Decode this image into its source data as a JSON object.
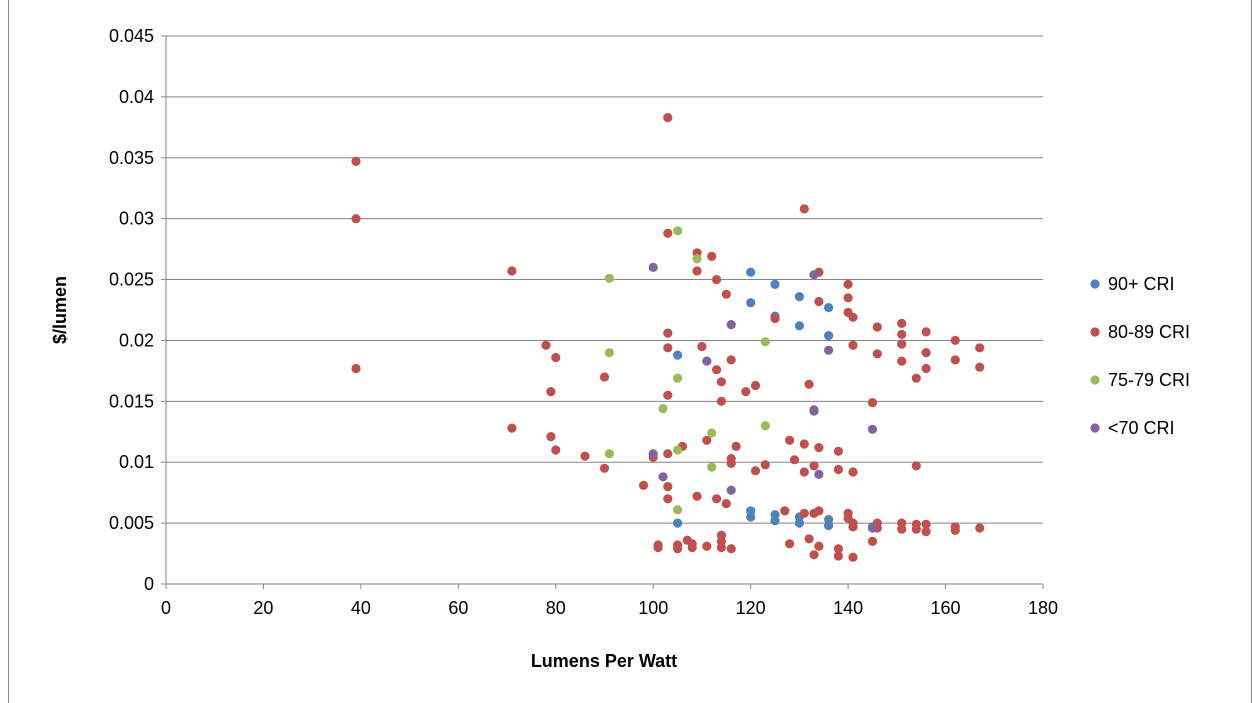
{
  "chart_data": {
    "type": "scatter",
    "title": "",
    "xlabel": "Lumens Per Watt",
    "ylabel": "$/lumen",
    "xlim": [
      0,
      180
    ],
    "ylim": [
      0,
      0.045
    ],
    "x_ticks": [
      "0",
      "20",
      "40",
      "60",
      "80",
      "100",
      "120",
      "140",
      "160",
      "180"
    ],
    "y_ticks": [
      "0",
      "0.005",
      "0.01",
      "0.015",
      "0.02",
      "0.025",
      "0.03",
      "0.035",
      "0.04",
      "0.045"
    ],
    "grid": "horizontal",
    "legend_position": "right",
    "series": [
      {
        "name": "90+ CRI",
        "color": "#4f81bd",
        "points": [
          [
            105,
            0.0188
          ],
          [
            105,
            0.005
          ],
          [
            120,
            0.0256
          ],
          [
            120,
            0.0231
          ],
          [
            120,
            0.006
          ],
          [
            120,
            0.0055
          ],
          [
            125,
            0.0246
          ],
          [
            125,
            0.022
          ],
          [
            125,
            0.0057
          ],
          [
            125,
            0.0052
          ],
          [
            130,
            0.0236
          ],
          [
            130,
            0.0212
          ],
          [
            130,
            0.0055
          ],
          [
            130,
            0.005
          ],
          [
            136,
            0.0227
          ],
          [
            136,
            0.0204
          ],
          [
            136,
            0.0053
          ],
          [
            136,
            0.0048
          ],
          [
            145,
            0.0047
          ]
        ]
      },
      {
        "name": "80-89 CRI",
        "color": "#c0504d",
        "points": [
          [
            39,
            0.0347
          ],
          [
            39,
            0.03
          ],
          [
            39,
            0.0177
          ],
          [
            71,
            0.0257
          ],
          [
            71,
            0.0128
          ],
          [
            78,
            0.0196
          ],
          [
            79,
            0.0121
          ],
          [
            79,
            0.0158
          ],
          [
            80,
            0.0186
          ],
          [
            80,
            0.011
          ],
          [
            86,
            0.0105
          ],
          [
            90,
            0.0095
          ],
          [
            90,
            0.017
          ],
          [
            98,
            0.0081
          ],
          [
            100,
            0.0104
          ],
          [
            101,
            0.0032
          ],
          [
            101,
            0.003
          ],
          [
            103,
            0.0383
          ],
          [
            103,
            0.0288
          ],
          [
            103,
            0.0206
          ],
          [
            103,
            0.0194
          ],
          [
            103,
            0.0155
          ],
          [
            103,
            0.0107
          ],
          [
            103,
            0.008
          ],
          [
            103,
            0.007
          ],
          [
            105,
            0.0032
          ],
          [
            105,
            0.0029
          ],
          [
            106,
            0.0113
          ],
          [
            107,
            0.0036
          ],
          [
            108,
            0.0033
          ],
          [
            108,
            0.003
          ],
          [
            109,
            0.0272
          ],
          [
            109,
            0.0257
          ],
          [
            109,
            0.0072
          ],
          [
            110,
            0.0195
          ],
          [
            111,
            0.0118
          ],
          [
            111,
            0.0031
          ],
          [
            112,
            0.0269
          ],
          [
            113,
            0.025
          ],
          [
            113,
            0.0176
          ],
          [
            113,
            0.007
          ],
          [
            114,
            0.0166
          ],
          [
            114,
            0.015
          ],
          [
            114,
            0.004
          ],
          [
            114,
            0.0035
          ],
          [
            114,
            0.003
          ],
          [
            115,
            0.0238
          ],
          [
            115,
            0.0066
          ],
          [
            116,
            0.0184
          ],
          [
            116,
            0.0103
          ],
          [
            116,
            0.0099
          ],
          [
            116,
            0.0029
          ],
          [
            117,
            0.0113
          ],
          [
            119,
            0.0158
          ],
          [
            121,
            0.0163
          ],
          [
            121,
            0.0093
          ],
          [
            123,
            0.0098
          ],
          [
            125,
            0.0218
          ],
          [
            127,
            0.006
          ],
          [
            128,
            0.0118
          ],
          [
            128,
            0.0033
          ],
          [
            129,
            0.0102
          ],
          [
            131,
            0.0308
          ],
          [
            131,
            0.0115
          ],
          [
            131,
            0.0092
          ],
          [
            131,
            0.0058
          ],
          [
            132,
            0.0164
          ],
          [
            132,
            0.0037
          ],
          [
            133,
            0.0024
          ],
          [
            133,
            0.0143
          ],
          [
            133,
            0.0097
          ],
          [
            133,
            0.0058
          ],
          [
            134,
            0.0256
          ],
          [
            134,
            0.0232
          ],
          [
            134,
            0.0112
          ],
          [
            134,
            0.006
          ],
          [
            134,
            0.0031
          ],
          [
            138,
            0.0109
          ],
          [
            138,
            0.0094
          ],
          [
            138,
            0.0023
          ],
          [
            138,
            0.0029
          ],
          [
            140,
            0.0246
          ],
          [
            140,
            0.0235
          ],
          [
            140,
            0.0223
          ],
          [
            140,
            0.0058
          ],
          [
            140,
            0.0054
          ],
          [
            141,
            0.0219
          ],
          [
            141,
            0.0196
          ],
          [
            141,
            0.0092
          ],
          [
            141,
            0.005
          ],
          [
            141,
            0.0047
          ],
          [
            141,
            0.0022
          ],
          [
            145,
            0.0149
          ],
          [
            145,
            0.0035
          ],
          [
            146,
            0.0211
          ],
          [
            146,
            0.0189
          ],
          [
            146,
            0.005
          ],
          [
            146,
            0.0046
          ],
          [
            151,
            0.0214
          ],
          [
            151,
            0.0205
          ],
          [
            151,
            0.0197
          ],
          [
            151,
            0.0183
          ],
          [
            151,
            0.005
          ],
          [
            151,
            0.0045
          ],
          [
            154,
            0.0169
          ],
          [
            154,
            0.0097
          ],
          [
            154,
            0.0049
          ],
          [
            154,
            0.0045
          ],
          [
            156,
            0.0207
          ],
          [
            156,
            0.019
          ],
          [
            156,
            0.0177
          ],
          [
            156,
            0.0049
          ],
          [
            156,
            0.0043
          ],
          [
            162,
            0.02
          ],
          [
            162,
            0.0184
          ],
          [
            162,
            0.0047
          ],
          [
            162,
            0.0044
          ],
          [
            167,
            0.0194
          ],
          [
            167,
            0.0178
          ],
          [
            167,
            0.0046
          ]
        ]
      },
      {
        "name": "75-79 CRI",
        "color": "#9bbb59",
        "points": [
          [
            91,
            0.0251
          ],
          [
            91,
            0.019
          ],
          [
            91,
            0.0107
          ],
          [
            102,
            0.0144
          ],
          [
            105,
            0.029
          ],
          [
            105,
            0.0169
          ],
          [
            105,
            0.011
          ],
          [
            105,
            0.0061
          ],
          [
            109,
            0.0267
          ],
          [
            112,
            0.0124
          ],
          [
            112,
            0.0096
          ],
          [
            123,
            0.0199
          ],
          [
            123,
            0.013
          ]
        ]
      },
      {
        "name": "<70 CRI",
        "color": "#8064a2",
        "points": [
          [
            100,
            0.026
          ],
          [
            100,
            0.0107
          ],
          [
            102,
            0.0088
          ],
          [
            111,
            0.0183
          ],
          [
            116,
            0.0213
          ],
          [
            116,
            0.0077
          ],
          [
            133,
            0.0254
          ],
          [
            133,
            0.0142
          ],
          [
            134,
            0.009
          ],
          [
            136,
            0.0192
          ],
          [
            145,
            0.0127
          ],
          [
            145,
            0.0046
          ]
        ]
      }
    ]
  }
}
